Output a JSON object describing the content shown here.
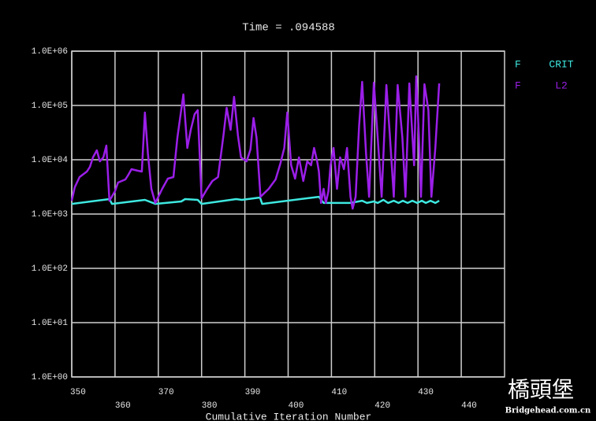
{
  "chart_data": {
    "type": "line",
    "title": "Time = .094588",
    "x_label": "Cumulative Iteration Number",
    "log_y": true,
    "grid": true,
    "xlim": [
      350,
      450
    ],
    "xticks": [
      350,
      360,
      370,
      380,
      390,
      400,
      410,
      420,
      430,
      440
    ],
    "ylim": [
      1,
      1000000
    ],
    "yticks": [
      {
        "value": 1,
        "label": "1.0E+00"
      },
      {
        "value": 10,
        "label": "1.0E+01"
      },
      {
        "value": 100,
        "label": "1.0E+02"
      },
      {
        "value": 1000,
        "label": "1.0E+03"
      },
      {
        "value": 10000,
        "label": "1.0E+04"
      },
      {
        "value": 100000,
        "label": "1.0E+05"
      },
      {
        "value": 1000000,
        "label": "1.0E+06"
      }
    ],
    "series": [
      {
        "quantity": "F",
        "name": "CRIT",
        "color": "#3ee8e0",
        "x": [
          350,
          358.7,
          359.3,
          366.9,
          369.3,
          375.3,
          376.2,
          379.1,
          380,
          388,
          389.3,
          393.5,
          394,
          407.1,
          408.2,
          411.6,
          414.4,
          417.1,
          418.2,
          419.8,
          420.7,
          422,
          423.1,
          424.4,
          425.5,
          426.5,
          427.6,
          428.7,
          429.8,
          430.9,
          431.8,
          432.9,
          434,
          434.9
        ],
        "values": [
          1540,
          1885,
          1540,
          1823,
          1540,
          1706,
          1885,
          1823,
          1540,
          1885,
          1823,
          2015,
          1540,
          2080,
          1600,
          1600,
          1600,
          1760,
          1600,
          1706,
          1600,
          1823,
          1600,
          1760,
          1600,
          1760,
          1600,
          1760,
          1600,
          1760,
          1600,
          1760,
          1600,
          1760
        ]
      },
      {
        "quantity": "F",
        "name": "L2",
        "color": "#9b1fe8",
        "x": [
          350,
          350.7,
          351.8,
          353.5,
          354.2,
          354.9,
          355.8,
          356.5,
          357.3,
          358,
          358.7,
          360,
          360.7,
          362.4,
          363.1,
          363.8,
          365.3,
          366.2,
          366.9,
          367.6,
          368.4,
          369.3,
          370,
          370.9,
          372.2,
          373.5,
          374.4,
          375.8,
          376.7,
          377.5,
          378.4,
          379.1,
          380,
          381.3,
          382.5,
          383.8,
          385.1,
          385.8,
          386.7,
          387.5,
          388.4,
          389.1,
          390.4,
          391.3,
          392,
          392.7,
          393.6,
          395.5,
          397.1,
          398.2,
          399.1,
          399.8,
          400.7,
          401.6,
          402.5,
          403.5,
          404.4,
          405.3,
          406,
          406.7,
          407.1,
          407.6,
          408.2,
          408.7,
          409.3,
          409.8,
          410.5,
          411.3,
          412,
          412.9,
          413.6,
          414.4,
          414.9,
          415.6,
          416.4,
          417.1,
          418,
          418.7,
          419.8,
          420.7,
          421.6,
          422.7,
          423.5,
          424.4,
          425.3,
          426.4,
          427.1,
          428,
          429.1,
          429.6,
          430.2,
          430.7,
          431.5,
          432.4,
          433.1,
          434,
          434.9
        ],
        "values": [
          1760,
          3110,
          4800,
          6060,
          7410,
          11050,
          14930,
          9350,
          11050,
          18240,
          1760,
          2630,
          3800,
          4340,
          5300,
          6700,
          6270,
          6060,
          74100,
          13060,
          2910,
          1600,
          2080,
          2910,
          4490,
          4800,
          25460,
          159600,
          16490,
          35550,
          69300,
          81900,
          1950,
          2910,
          4060,
          4800,
          30080,
          90500,
          35550,
          144300,
          28140,
          11050,
          9350,
          15430,
          58600,
          25460,
          2080,
          2910,
          4340,
          8470,
          16490,
          74100,
          7920,
          4490,
          11050,
          4060,
          9350,
          7920,
          16490,
          9350,
          6060,
          1600,
          2910,
          1600,
          2630,
          7920,
          16490,
          2910,
          11050,
          6700,
          16490,
          2080,
          1260,
          2080,
          42000,
          272000,
          13060,
          2080,
          263000,
          25460,
          2080,
          238000,
          28140,
          2080,
          238000,
          25460,
          2080,
          254500,
          7920,
          343800,
          28140,
          2080,
          246000,
          81900,
          2080,
          16490,
          254500
        ]
      }
    ],
    "watermark": {
      "title": "橋頭堡",
      "site": "Bridgehead.com.cn"
    }
  }
}
